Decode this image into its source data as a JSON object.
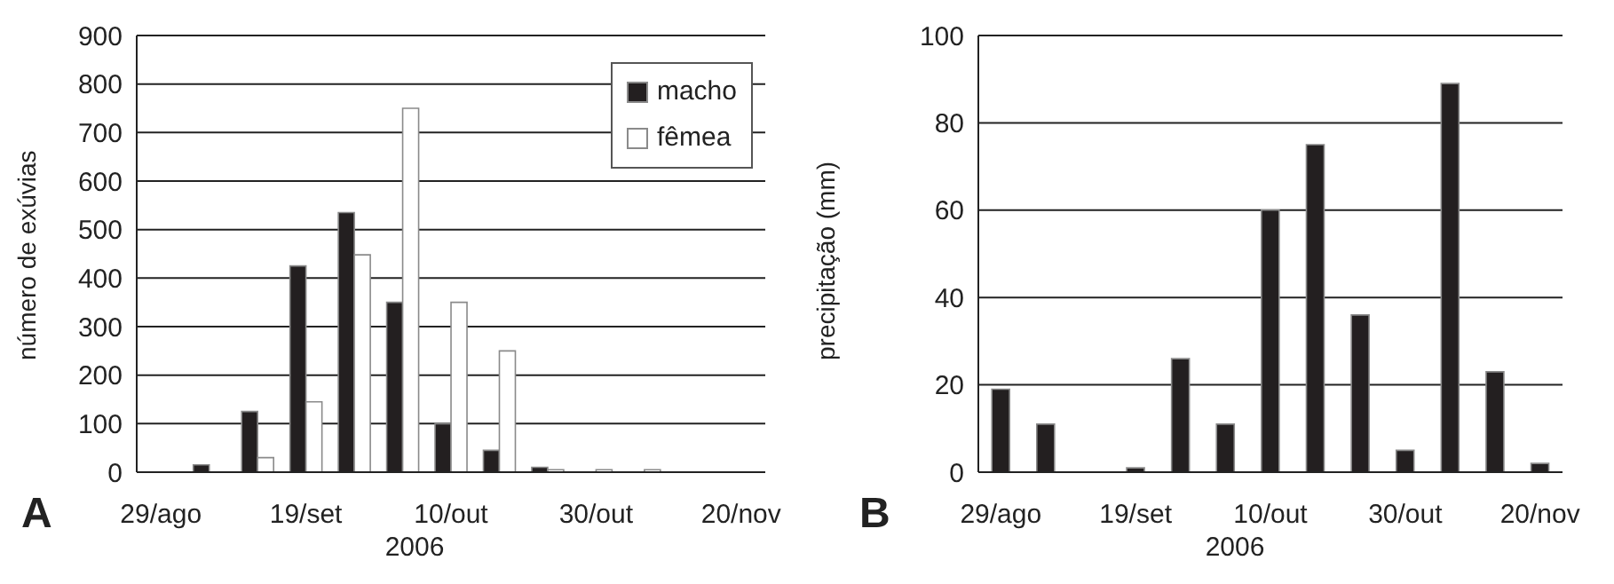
{
  "chart_data": [
    {
      "type": "bar",
      "categories": [
        "29/ago",
        null,
        null,
        "19/set",
        null,
        null,
        "10/out",
        null,
        null,
        "30/out",
        null,
        null,
        "20/nov"
      ],
      "xlabel": "2006",
      "ylabel": "número de exúvias",
      "ylim": [
        0,
        900
      ],
      "yticks": [
        0,
        100,
        200,
        300,
        400,
        500,
        600,
        700,
        800,
        900
      ],
      "grid": "y",
      "legend": "top right",
      "annotations": [
        "A"
      ],
      "series": [
        {
          "name": "macho",
          "color": "#231f20",
          "values": [
            0,
            15,
            125,
            425,
            535,
            350,
            100,
            45,
            10,
            0,
            0,
            0,
            0
          ]
        },
        {
          "name": "fêmea",
          "color": "#ffffff",
          "values": [
            0,
            0,
            30,
            145,
            448,
            750,
            350,
            250,
            5,
            5,
            5,
            0,
            0
          ]
        }
      ]
    },
    {
      "type": "bar",
      "categories": [
        "29/ago",
        null,
        null,
        "19/set",
        null,
        null,
        "10/out",
        null,
        null,
        "30/out",
        null,
        null,
        "20/nov"
      ],
      "xlabel": "2006",
      "ylabel": "precipitação (mm)",
      "ylim": [
        0,
        100
      ],
      "yticks": [
        0,
        20,
        40,
        60,
        80,
        100
      ],
      "grid": "y",
      "annotations": [
        "B"
      ],
      "series": [
        {
          "color": "#231f20",
          "values": [
            19,
            11,
            0,
            1,
            26,
            11,
            60,
            75,
            36,
            5,
            89,
            23,
            2
          ]
        }
      ]
    }
  ]
}
